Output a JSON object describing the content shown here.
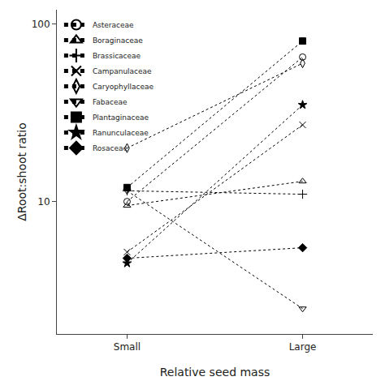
{
  "chart_data": {
    "type": "line",
    "xlabel": "Relative seed mass",
    "ylabel": "ΔRoot:shoot ratio",
    "categories": [
      "Small",
      "Large"
    ],
    "series": [
      {
        "name": "Asteraceae",
        "color": "#000000",
        "marker": "circle-open",
        "line_style": "dotted",
        "values": [
          10.0,
          65.0
        ]
      },
      {
        "name": "Boraginaceae",
        "color": "#000000",
        "marker": "triangle-up-open",
        "line_style": "dotted",
        "values": [
          9.5,
          13.0
        ]
      },
      {
        "name": "Brassicaceae",
        "color": "#000000",
        "marker": "cross-thin-open",
        "line_style": "dotted",
        "values": [
          11.5,
          11.0
        ]
      },
      {
        "name": "Campanulaceae",
        "color": "#000000",
        "marker": "x-thin-open",
        "line_style": "dotted",
        "values": [
          5.2,
          27.0
        ]
      },
      {
        "name": "Caryophyllaceae",
        "color": "#000000",
        "marker": "diamond-tall-open",
        "line_style": "dotted",
        "values": [
          20.0,
          60.0
        ]
      },
      {
        "name": "Fabaceae",
        "color": "#000000",
        "marker": "triangle-down-open",
        "line_style": "dotted",
        "values": [
          11.5,
          2.5
        ]
      },
      {
        "name": "Plantaginaceae",
        "color": "#000000",
        "marker": "square",
        "line_style": "dotted",
        "values": [
          12.0,
          80.0
        ]
      },
      {
        "name": "Ranunculaceae",
        "color": "#000000",
        "marker": "star",
        "line_style": "dotted",
        "values": [
          4.5,
          35.0
        ]
      },
      {
        "name": "Rosaceae",
        "color": "#000000",
        "marker": "diamond",
        "line_style": "dotted",
        "values": [
          4.8,
          5.5
        ]
      }
    ],
    "ylim": [
      1.8,
      120
    ],
    "yticks": [
      10,
      100
    ],
    "log": "y",
    "grid": false,
    "legend": "upper left"
  }
}
